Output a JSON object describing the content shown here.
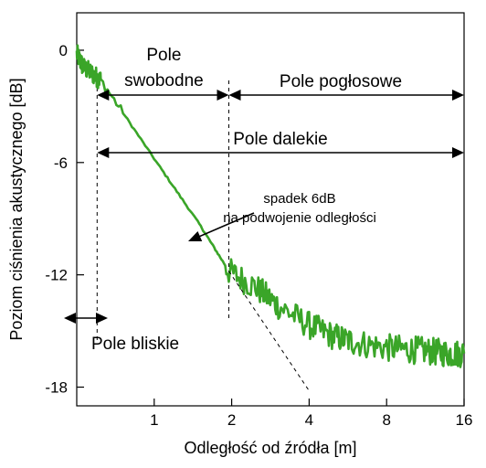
{
  "chart_data": {
    "type": "line",
    "xlabel": "Odległość od źródła [m]",
    "ylabel": "Poziom ciśnienia akustycznego [dB]",
    "x_scale": "log2",
    "xlim": [
      0.5,
      16
    ],
    "ylim": [
      -19,
      2
    ],
    "x_ticks": [
      1,
      2,
      4,
      8,
      16
    ],
    "x_tick_labels": [
      "1",
      "2",
      "4",
      "8",
      "16"
    ],
    "y_ticks": [
      0,
      -6,
      -12,
      -18
    ],
    "y_tick_labels": [
      "0",
      "-6",
      "-12",
      "-18"
    ],
    "grid": false,
    "series": [
      {
        "color": "#3aa528",
        "x": [
          0.5,
          0.53,
          0.58,
          0.62,
          1.0,
          1.5,
          1.95,
          2.5,
          3.0,
          4.0,
          5.0,
          6.0,
          8.0,
          10.0,
          12.0,
          14.0,
          16.0
        ],
        "y": [
          -0.2,
          -0.9,
          -1.3,
          -1.6,
          -5.8,
          -9.3,
          -11.8,
          -12.7,
          -13.6,
          -14.7,
          -15.3,
          -15.6,
          -15.9,
          -16.0,
          -16.1,
          -16.2,
          -16.2
        ]
      },
      {
        "line_style": "dashed",
        "color": "#000000",
        "x": [
          1.95,
          4.0
        ],
        "y": [
          -11.8,
          -18.2
        ]
      }
    ],
    "zones": {
      "near_field": "Pole bliskie",
      "free_field": "Pole\nswobodne",
      "reverberant_field": "Pole pogłosowe",
      "far_field": "Pole dalekie"
    },
    "zone_boundaries_x": [
      0.6,
      1.95
    ],
    "annotation": "spadek 6dB\nna podwojenie odległości"
  }
}
